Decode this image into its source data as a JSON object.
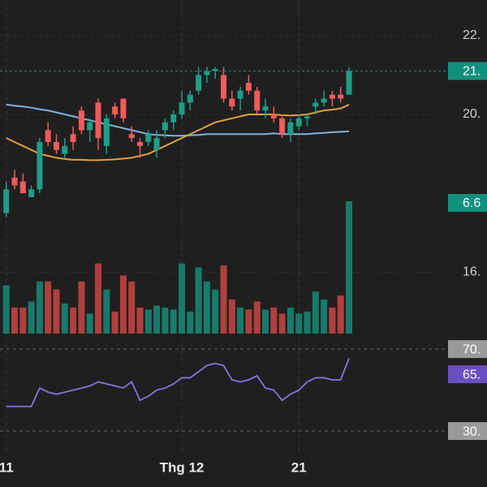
{
  "chart_data": [
    {
      "type": "candlestick",
      "categories": [
        "11",
        null,
        null,
        null,
        null,
        null,
        null,
        null,
        null,
        null,
        null,
        null,
        null,
        null,
        null,
        null,
        null,
        null,
        null,
        null,
        null,
        "Thg 12",
        null,
        null,
        null,
        null,
        null,
        null,
        null,
        null,
        null,
        null,
        null,
        null,
        null,
        "21",
        null,
        null,
        null,
        null,
        null,
        null
      ],
      "open": [
        17.5,
        18.4,
        18.3,
        17.9,
        18.1,
        19.6,
        19.3,
        19.0,
        19.5,
        20.1,
        19.6,
        20.3,
        19.2,
        20.2,
        20.4,
        19.5,
        19.3,
        19.3,
        19.1,
        19.6,
        19.8,
        20.0,
        20.3,
        20.6,
        21.0,
        21.1,
        21.0,
        20.4,
        20.4,
        20.8,
        20.6,
        20.1,
        20.0,
        19.9,
        19.5,
        19.7,
        19.9,
        20.2,
        20.3,
        20.5,
        20.5,
        20.5
      ],
      "high": [
        18.3,
        18.6,
        18.5,
        18.2,
        19.4,
        19.8,
        19.5,
        19.4,
        19.7,
        20.2,
        19.9,
        20.4,
        20.0,
        20.3,
        20.4,
        19.7,
        19.4,
        19.6,
        19.6,
        19.9,
        20.1,
        20.6,
        20.6,
        21.2,
        21.2,
        21.2,
        21.2,
        20.6,
        20.7,
        21.0,
        20.7,
        20.4,
        20.2,
        20.0,
        19.9,
        20.0,
        20.0,
        20.4,
        20.6,
        20.6,
        20.7,
        21.2
      ],
      "low": [
        17.4,
        18.1,
        18.0,
        17.9,
        18.0,
        19.2,
        19.0,
        18.9,
        19.1,
        19.5,
        19.3,
        19.1,
        19.0,
        19.9,
        19.8,
        19.3,
        18.9,
        19.2,
        18.9,
        19.4,
        19.6,
        19.9,
        20.1,
        20.5,
        20.8,
        20.9,
        20.3,
        20.1,
        20.1,
        20.5,
        20.0,
        19.9,
        19.8,
        19.4,
        19.3,
        19.6,
        19.7,
        20.0,
        20.2,
        20.2,
        20.3,
        20.5
      ],
      "close": [
        18.1,
        18.2,
        18.0,
        18.1,
        19.3,
        19.3,
        19.1,
        19.2,
        19.3,
        19.6,
        19.8,
        19.4,
        19.9,
        20.0,
        19.9,
        19.4,
        19.2,
        19.5,
        19.4,
        19.8,
        20.0,
        20.3,
        20.5,
        21.0,
        21.1,
        21.15,
        20.4,
        20.2,
        20.6,
        20.6,
        20.1,
        20.2,
        19.9,
        19.5,
        19.8,
        19.9,
        19.95,
        20.3,
        20.4,
        20.4,
        20.4,
        21.1
      ],
      "up_color": "#1f9e8a",
      "down_color": "#ef5b5b",
      "ylim": [
        14.3,
        22.9
      ],
      "yticks": [
        {
          "value": 22,
          "label": "22."
        },
        {
          "value": 20,
          "label": "20."
        },
        {
          "value": 16,
          "label": "16."
        }
      ],
      "price_label": {
        "value": 21.1,
        "label": "21.",
        "color": "#12907e"
      },
      "moving_averages": [
        {
          "color": "#7fb2e0",
          "values": [
            20.25,
            20.22,
            20.2,
            20.17,
            20.13,
            20.1,
            20.05,
            20.0,
            19.95,
            19.9,
            19.85,
            19.8,
            19.75,
            19.7,
            19.65,
            19.6,
            19.55,
            19.5,
            19.48,
            19.47,
            19.46,
            19.46,
            19.47,
            19.48,
            19.5,
            19.5,
            19.5,
            19.5,
            19.5,
            19.5,
            19.5,
            19.5,
            19.52,
            19.5,
            19.5,
            19.5,
            19.5,
            19.52,
            19.53,
            19.55,
            19.56,
            19.57
          ]
        },
        {
          "color": "#e0a040",
          "values": [
            19.4,
            19.3,
            19.2,
            19.1,
            19.0,
            18.95,
            18.9,
            18.87,
            18.85,
            18.85,
            18.84,
            18.84,
            18.85,
            18.86,
            18.88,
            18.9,
            18.95,
            19.0,
            19.1,
            19.2,
            19.3,
            19.4,
            19.5,
            19.6,
            19.7,
            19.8,
            19.85,
            19.9,
            19.95,
            20.0,
            20.0,
            20.0,
            20.0,
            19.98,
            19.97,
            19.98,
            20.0,
            20.05,
            20.1,
            20.12,
            20.15,
            20.25
          ]
        }
      ],
      "volume": {
        "values": [
          2.4,
          1.3,
          1.3,
          1.6,
          2.6,
          2.6,
          2.2,
          1.5,
          1.3,
          2.6,
          1.0,
          3.5,
          2.2,
          1.1,
          2.9,
          2.6,
          1.3,
          1.2,
          1.4,
          1.3,
          1.2,
          3.5,
          1.1,
          3.3,
          2.6,
          2.2,
          3.4,
          1.7,
          1.3,
          1.2,
          1.6,
          1.2,
          1.3,
          1.0,
          1.3,
          1.0,
          1.1,
          2.1,
          1.7,
          1.3,
          1.9,
          6.6
        ],
        "label": "6.6",
        "up_color": "#187a6b",
        "down_color": "#b0403e",
        "label_color": "#12907e"
      }
    },
    {
      "type": "line",
      "color": "#8a74e0",
      "values": [
        42,
        42,
        42,
        42,
        51,
        49,
        48,
        49,
        50,
        51,
        52,
        54,
        53,
        52,
        51,
        54,
        45,
        47,
        50,
        51,
        53,
        56,
        56,
        59,
        62,
        63,
        62,
        55,
        54,
        55,
        57,
        51,
        50,
        45,
        48,
        50,
        54,
        56,
        56,
        55,
        55,
        65.5
      ],
      "label": "65.",
      "label_color": "#6a4fc2",
      "ylim": [
        22.5,
        74.8
      ],
      "yticks": [
        {
          "value": 70,
          "label": "70."
        },
        {
          "value": 30,
          "label": "30."
        }
      ]
    }
  ]
}
